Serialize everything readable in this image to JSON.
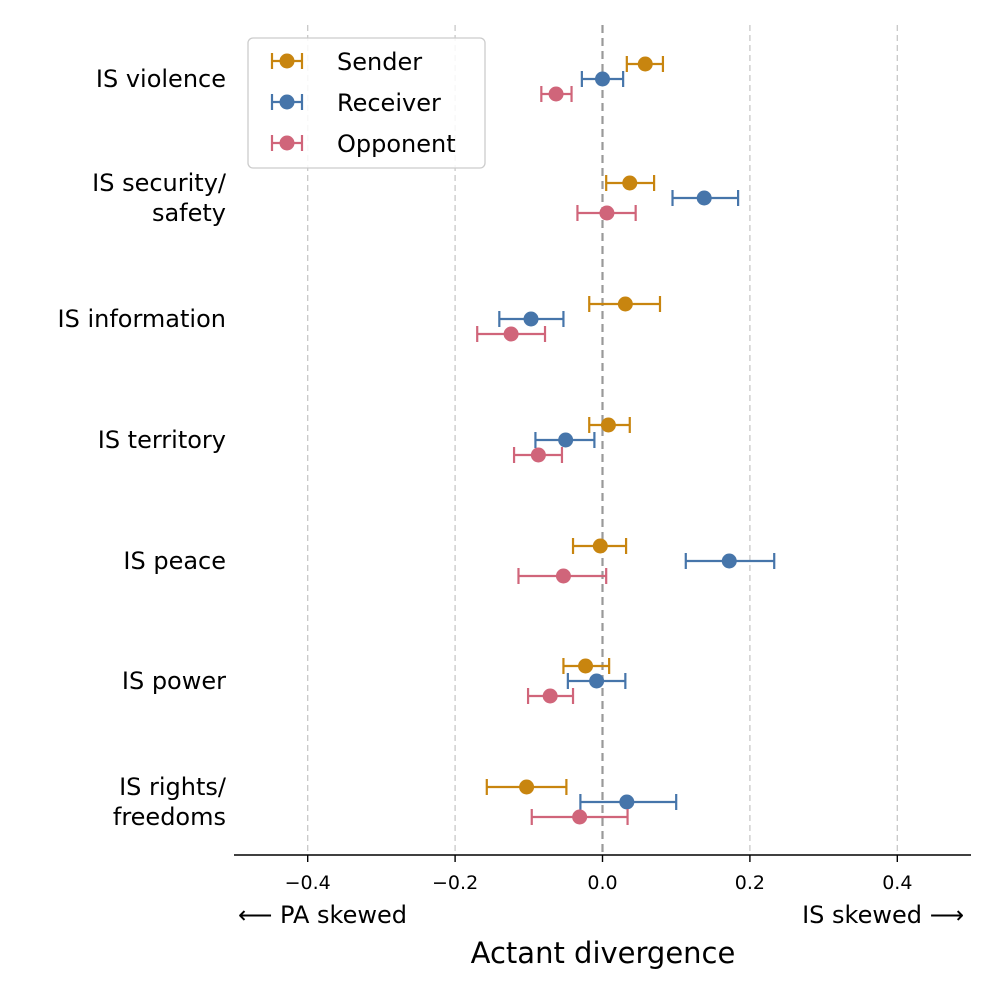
{
  "chart_data": {
    "type": "errorbar",
    "title": "",
    "xlabel": "Actant divergence",
    "xlim": [
      -0.5,
      0.5
    ],
    "xticks": [
      -0.4,
      -0.2,
      0.0,
      0.2,
      0.4
    ],
    "xtick_labels": [
      "−0.4",
      "−0.2",
      "0.0",
      "0.2",
      "0.4"
    ],
    "left_direction_label": "⟵  PA skewed",
    "right_direction_label": "IS skewed  ⟶",
    "grid": "vertical dashed at ticks",
    "reference_line": 0.0,
    "categories": [
      [
        "IS violence"
      ],
      [
        "IS security/",
        "safety"
      ],
      [
        "IS information"
      ],
      [
        "IS territory"
      ],
      [
        "IS peace"
      ],
      [
        "IS power"
      ],
      [
        "IS rights/",
        "freedoms"
      ]
    ],
    "legend_position": "top-left",
    "series": [
      {
        "name": "Sender",
        "color": "#C8850F",
        "values": [
          0.058,
          0.037,
          0.031,
          0.008,
          -0.003,
          -0.023,
          -0.103
        ],
        "err_low": [
          0.033,
          0.005,
          -0.018,
          -0.018,
          -0.04,
          -0.053,
          -0.157
        ],
        "err_high": [
          0.082,
          0.07,
          0.078,
          0.037,
          0.032,
          0.009,
          -0.049
        ]
      },
      {
        "name": "Receiver",
        "color": "#4675AA",
        "values": [
          0.0,
          0.138,
          -0.097,
          -0.05,
          0.172,
          -0.008,
          0.033
        ],
        "err_low": [
          -0.028,
          0.095,
          -0.14,
          -0.091,
          0.113,
          -0.047,
          -0.03
        ],
        "err_high": [
          0.028,
          0.184,
          -0.053,
          -0.011,
          0.233,
          0.031,
          0.1
        ]
      },
      {
        "name": "Opponent",
        "color": "#D0657A",
        "values": [
          -0.063,
          0.006,
          -0.124,
          -0.087,
          -0.053,
          -0.071,
          -0.031
        ],
        "err_low": [
          -0.083,
          -0.034,
          -0.17,
          -0.12,
          -0.114,
          -0.101,
          -0.096
        ],
        "err_high": [
          -0.042,
          0.045,
          -0.078,
          -0.055,
          0.005,
          -0.04,
          0.034
        ]
      }
    ]
  }
}
